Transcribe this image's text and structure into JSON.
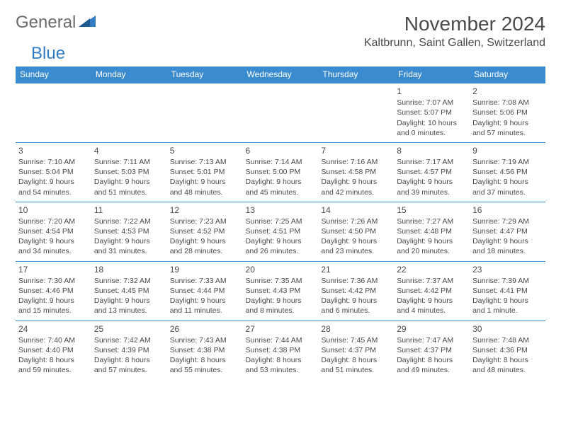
{
  "logo": {
    "word1": "General",
    "word2": "Blue"
  },
  "title": "November 2024",
  "location": "Kaltbrunn, Saint Gallen, Switzerland",
  "colors": {
    "header_bg": "#3b8bd0",
    "header_text": "#ffffff",
    "border": "#3b8bd0",
    "text": "#4a4a4a",
    "logo_gray": "#6b6b6b",
    "logo_blue": "#2f7cc4",
    "background": "#ffffff"
  },
  "day_headers": [
    "Sunday",
    "Monday",
    "Tuesday",
    "Wednesday",
    "Thursday",
    "Friday",
    "Saturday"
  ],
  "weeks": [
    [
      null,
      null,
      null,
      null,
      null,
      {
        "n": "1",
        "sr": "7:07 AM",
        "ss": "5:07 PM",
        "dl": "10 hours and 0 minutes."
      },
      {
        "n": "2",
        "sr": "7:08 AM",
        "ss": "5:06 PM",
        "dl": "9 hours and 57 minutes."
      }
    ],
    [
      {
        "n": "3",
        "sr": "7:10 AM",
        "ss": "5:04 PM",
        "dl": "9 hours and 54 minutes."
      },
      {
        "n": "4",
        "sr": "7:11 AM",
        "ss": "5:03 PM",
        "dl": "9 hours and 51 minutes."
      },
      {
        "n": "5",
        "sr": "7:13 AM",
        "ss": "5:01 PM",
        "dl": "9 hours and 48 minutes."
      },
      {
        "n": "6",
        "sr": "7:14 AM",
        "ss": "5:00 PM",
        "dl": "9 hours and 45 minutes."
      },
      {
        "n": "7",
        "sr": "7:16 AM",
        "ss": "4:58 PM",
        "dl": "9 hours and 42 minutes."
      },
      {
        "n": "8",
        "sr": "7:17 AM",
        "ss": "4:57 PM",
        "dl": "9 hours and 39 minutes."
      },
      {
        "n": "9",
        "sr": "7:19 AM",
        "ss": "4:56 PM",
        "dl": "9 hours and 37 minutes."
      }
    ],
    [
      {
        "n": "10",
        "sr": "7:20 AM",
        "ss": "4:54 PM",
        "dl": "9 hours and 34 minutes."
      },
      {
        "n": "11",
        "sr": "7:22 AM",
        "ss": "4:53 PM",
        "dl": "9 hours and 31 minutes."
      },
      {
        "n": "12",
        "sr": "7:23 AM",
        "ss": "4:52 PM",
        "dl": "9 hours and 28 minutes."
      },
      {
        "n": "13",
        "sr": "7:25 AM",
        "ss": "4:51 PM",
        "dl": "9 hours and 26 minutes."
      },
      {
        "n": "14",
        "sr": "7:26 AM",
        "ss": "4:50 PM",
        "dl": "9 hours and 23 minutes."
      },
      {
        "n": "15",
        "sr": "7:27 AM",
        "ss": "4:48 PM",
        "dl": "9 hours and 20 minutes."
      },
      {
        "n": "16",
        "sr": "7:29 AM",
        "ss": "4:47 PM",
        "dl": "9 hours and 18 minutes."
      }
    ],
    [
      {
        "n": "17",
        "sr": "7:30 AM",
        "ss": "4:46 PM",
        "dl": "9 hours and 15 minutes."
      },
      {
        "n": "18",
        "sr": "7:32 AM",
        "ss": "4:45 PM",
        "dl": "9 hours and 13 minutes."
      },
      {
        "n": "19",
        "sr": "7:33 AM",
        "ss": "4:44 PM",
        "dl": "9 hours and 11 minutes."
      },
      {
        "n": "20",
        "sr": "7:35 AM",
        "ss": "4:43 PM",
        "dl": "9 hours and 8 minutes."
      },
      {
        "n": "21",
        "sr": "7:36 AM",
        "ss": "4:42 PM",
        "dl": "9 hours and 6 minutes."
      },
      {
        "n": "22",
        "sr": "7:37 AM",
        "ss": "4:42 PM",
        "dl": "9 hours and 4 minutes."
      },
      {
        "n": "23",
        "sr": "7:39 AM",
        "ss": "4:41 PM",
        "dl": "9 hours and 1 minute."
      }
    ],
    [
      {
        "n": "24",
        "sr": "7:40 AM",
        "ss": "4:40 PM",
        "dl": "8 hours and 59 minutes."
      },
      {
        "n": "25",
        "sr": "7:42 AM",
        "ss": "4:39 PM",
        "dl": "8 hours and 57 minutes."
      },
      {
        "n": "26",
        "sr": "7:43 AM",
        "ss": "4:38 PM",
        "dl": "8 hours and 55 minutes."
      },
      {
        "n": "27",
        "sr": "7:44 AM",
        "ss": "4:38 PM",
        "dl": "8 hours and 53 minutes."
      },
      {
        "n": "28",
        "sr": "7:45 AM",
        "ss": "4:37 PM",
        "dl": "8 hours and 51 minutes."
      },
      {
        "n": "29",
        "sr": "7:47 AM",
        "ss": "4:37 PM",
        "dl": "8 hours and 49 minutes."
      },
      {
        "n": "30",
        "sr": "7:48 AM",
        "ss": "4:36 PM",
        "dl": "8 hours and 48 minutes."
      }
    ]
  ],
  "labels": {
    "sunrise": "Sunrise: ",
    "sunset": "Sunset: ",
    "daylight": "Daylight: "
  }
}
